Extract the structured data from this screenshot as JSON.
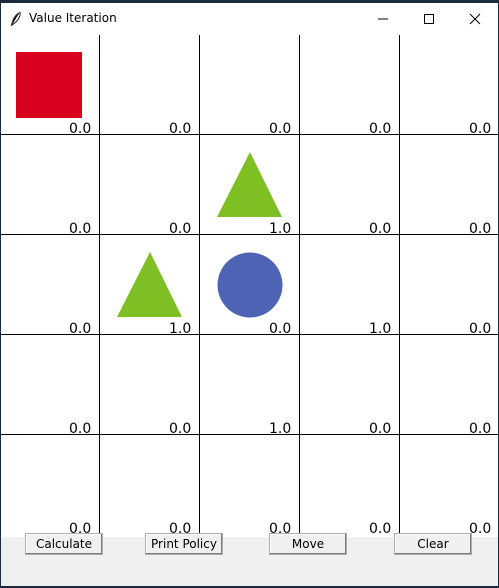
{
  "window": {
    "title": "Value Iteration"
  },
  "grid": {
    "values": [
      [
        "0.0",
        "0.0",
        "0.0",
        "0.0",
        "0.0"
      ],
      [
        "0.0",
        "0.0",
        "1.0",
        "0.0",
        "0.0"
      ],
      [
        "0.0",
        "1.0",
        "0.0",
        "1.0",
        "0.0"
      ],
      [
        "0.0",
        "0.0",
        "1.0",
        "0.0",
        "0.0"
      ],
      [
        "0.0",
        "0.0",
        "0.0",
        "0.0",
        "0.0"
      ]
    ]
  },
  "shapes": {
    "rectangle": {
      "color": "#d9001d"
    },
    "triangle": {
      "color": "#7ebf24"
    },
    "circle": {
      "color": "#4f63b4"
    }
  },
  "buttons": {
    "calculate": "Calculate",
    "print_policy": "Print Policy",
    "move": "Move",
    "clear": "Clear"
  }
}
